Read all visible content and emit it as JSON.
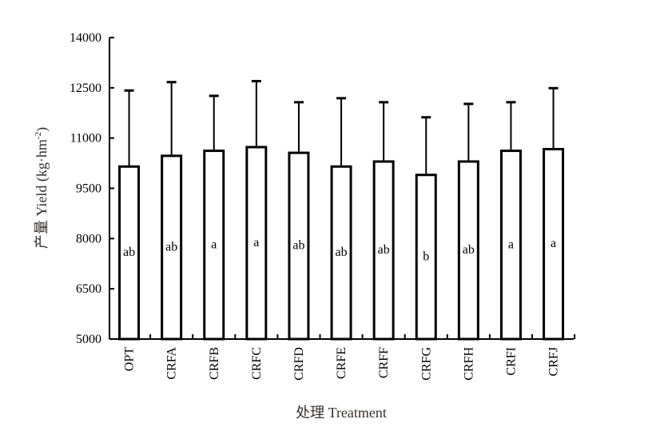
{
  "chart_data": {
    "type": "bar",
    "title": "",
    "xlabel": "处理 Treatment",
    "ylabel": "产量 Yield (kg·hm",
    "ylabel_superscript": "-2",
    "ylabel_close": ")",
    "ylim": [
      5000,
      14000
    ],
    "yticks": [
      "5000",
      "6500",
      "8000",
      "9500",
      "11000",
      "12500",
      "14000"
    ],
    "categories": [
      "OPT",
      "CRFA",
      "CRFB",
      "CRFC",
      "CRFD",
      "CRFE",
      "CRFF",
      "CRFG",
      "CRFH",
      "CRFI",
      "CRFJ"
    ],
    "values": [
      10150,
      10470,
      10620,
      10730,
      10560,
      10150,
      10300,
      9900,
      10300,
      10620,
      10670
    ],
    "error_upper": [
      12420,
      12670,
      12260,
      12700,
      12070,
      12190,
      12070,
      11620,
      12020,
      12070,
      12490
    ],
    "significance": [
      "ab",
      "ab",
      "a",
      "a",
      "ab",
      "ab",
      "ab",
      "b",
      "ab",
      "a",
      "a"
    ],
    "bar_fill": "#ffffff",
    "bar_stroke": "#000000",
    "axis_title_color": "#3a2f2f",
    "grid": false,
    "legend": "none"
  }
}
